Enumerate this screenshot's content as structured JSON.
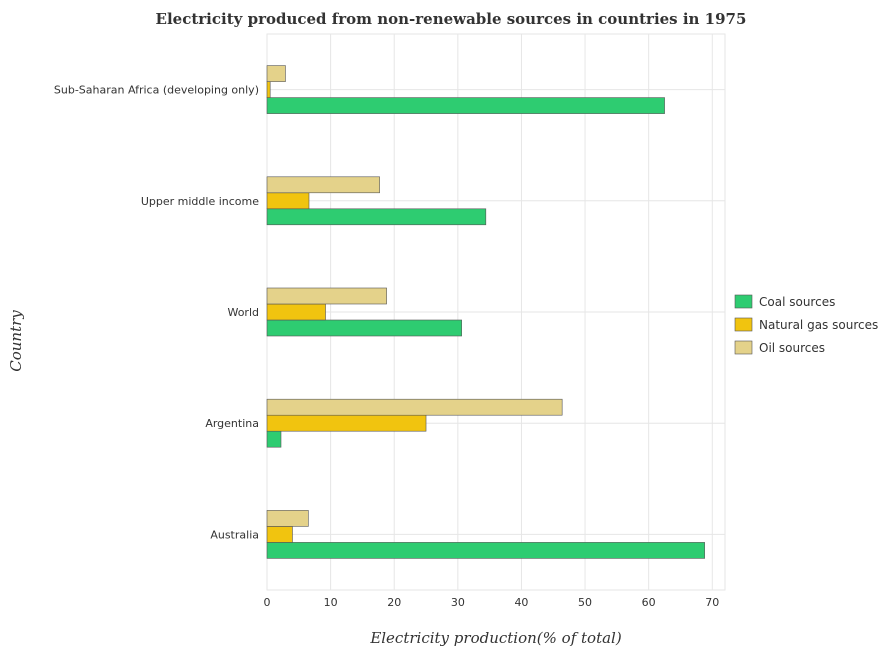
{
  "chart_data": {
    "type": "bar",
    "orientation": "horizontal",
    "title": "Electricity produced from non-renewable sources in countries in 1975",
    "xlabel": "Electricity production(% of total)",
    "ylabel": "Country",
    "xlim": [
      0,
      72
    ],
    "xticks": [
      0,
      10,
      20,
      30,
      40,
      50,
      60,
      70
    ],
    "grid": true,
    "legend_position": "right",
    "categories": [
      "Sub-Saharan Africa (developing only)",
      "Upper middle income",
      "World",
      "Argentina",
      "Australia"
    ],
    "series": [
      {
        "name": "Coal sources",
        "color": "#2ecc71",
        "values": [
          62.5,
          34.4,
          30.6,
          2.2,
          68.8
        ]
      },
      {
        "name": "Natural gas sources",
        "color": "#f1c40f",
        "values": [
          0.5,
          6.6,
          9.2,
          25.0,
          4.0
        ]
      },
      {
        "name": "Oil sources",
        "color": "#e4d28a",
        "values": [
          2.9,
          17.7,
          18.8,
          46.4,
          6.5
        ]
      }
    ]
  }
}
